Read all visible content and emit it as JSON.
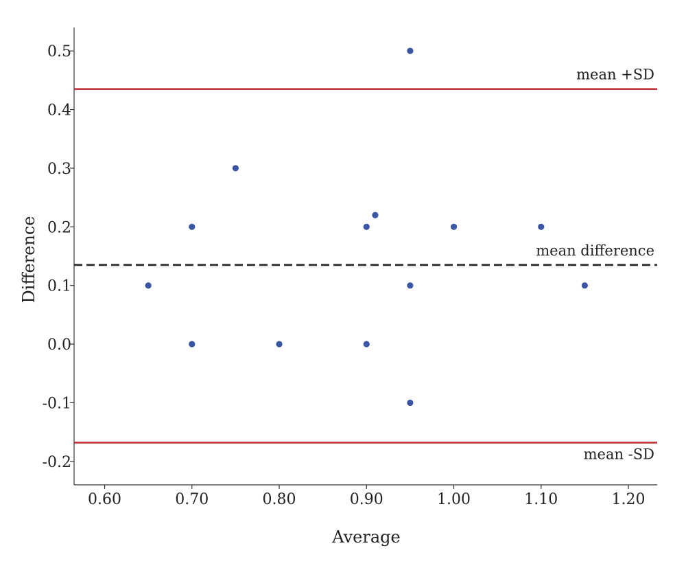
{
  "chart_data": {
    "type": "scatter",
    "xlabel": "Average",
    "ylabel": "Difference",
    "xlim": [
      0.565,
      1.233
    ],
    "ylim": [
      -0.24,
      0.54
    ],
    "x_ticks": [
      0.6,
      0.7,
      0.8,
      0.9,
      1.0,
      1.1,
      1.2
    ],
    "x_tick_labels": [
      "0.60",
      "0.70",
      "0.80",
      "0.90",
      "1.00",
      "1.10",
      "1.20"
    ],
    "y_ticks": [
      0.5,
      0.4,
      0.3,
      0.2,
      0.1,
      0.0,
      -0.1,
      -0.2
    ],
    "y_tick_labels": [
      "0.5",
      "0.4",
      "0.3",
      "0.2",
      "0.1",
      "0.0",
      "-0.1",
      "-0.2"
    ],
    "grid": false,
    "points": [
      {
        "x": 0.65,
        "y": 0.1
      },
      {
        "x": 0.7,
        "y": 0.2
      },
      {
        "x": 0.7,
        "y": 0.0
      },
      {
        "x": 0.75,
        "y": 0.3
      },
      {
        "x": 0.8,
        "y": 0.0
      },
      {
        "x": 0.9,
        "y": 0.2
      },
      {
        "x": 0.9,
        "y": 0.0
      },
      {
        "x": 0.91,
        "y": 0.22
      },
      {
        "x": 0.95,
        "y": 0.5
      },
      {
        "x": 0.95,
        "y": 0.1
      },
      {
        "x": 0.95,
        "y": -0.1
      },
      {
        "x": 1.0,
        "y": 0.2
      },
      {
        "x": 1.1,
        "y": 0.2
      },
      {
        "x": 1.15,
        "y": 0.1
      }
    ],
    "reference_lines": [
      {
        "label": "mean +SD",
        "y": 0.435,
        "style": "solid",
        "color": "#c0343c"
      },
      {
        "label": "mean difference",
        "y": 0.135,
        "style": "dashed",
        "color": "#333333"
      },
      {
        "label": "mean -SD",
        "y": -0.168,
        "style": "solid",
        "color": "#c0343c"
      }
    ],
    "point_color": "#3a55a4"
  }
}
